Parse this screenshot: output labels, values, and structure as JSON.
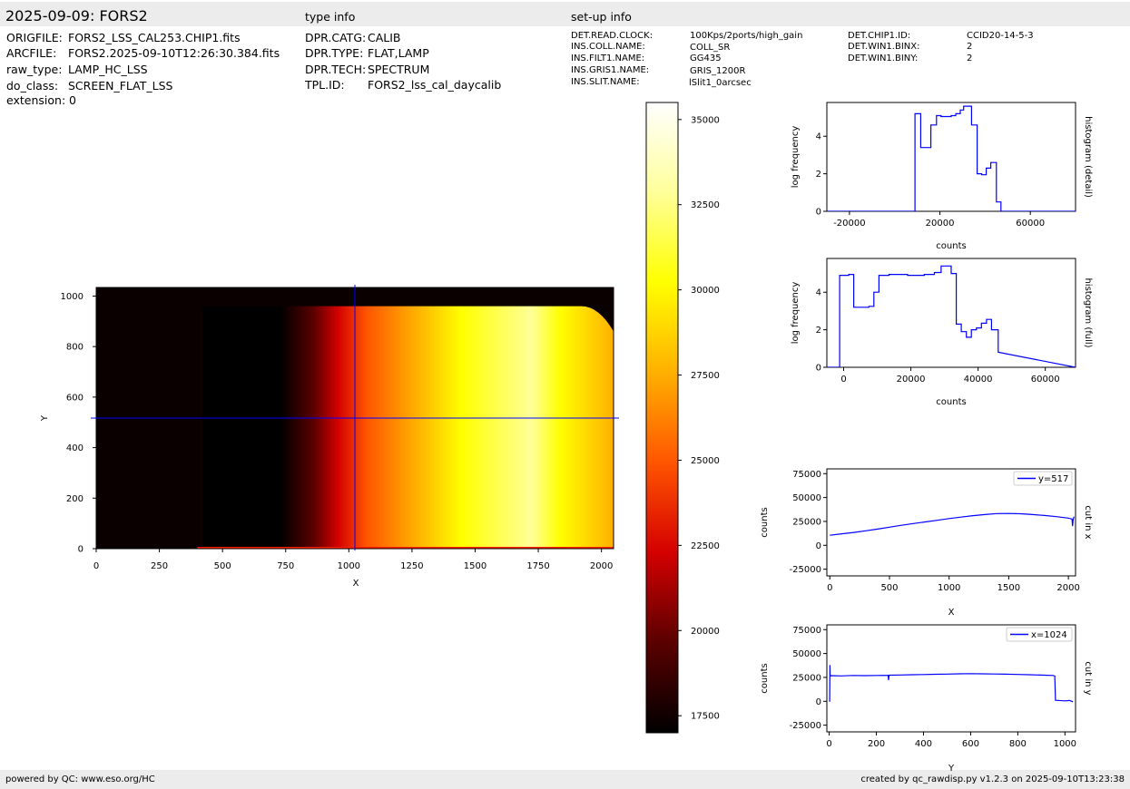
{
  "header": {
    "title": "2025-09-09: FORS2",
    "type_info_title": "type info",
    "setup_info_title": "set-up info"
  },
  "file_info": [
    {
      "key": "ORIGFILE:",
      "value": "FORS2_LSS_CAL253.CHIP1.fits"
    },
    {
      "key": "ARCFILE:",
      "value": "FORS2.2025-09-10T12:26:30.384.fits"
    },
    {
      "key": "raw_type:",
      "value": "LAMP_HC_LSS"
    },
    {
      "key": "do_class:",
      "value": "SCREEN_FLAT_LSS"
    },
    {
      "key": "extension:",
      "value": "0"
    }
  ],
  "type_info": [
    {
      "key": "DPR.CATG:",
      "value": "CALIB"
    },
    {
      "key": "DPR.TYPE:",
      "value": "FLAT,LAMP"
    },
    {
      "key": "DPR.TECH:",
      "value": "SPECTRUM"
    },
    {
      "key": "TPL.ID:",
      "value": "FORS2_lss_cal_daycalib"
    }
  ],
  "setup_info_col1": [
    {
      "key": "DET.READ.CLOCK:",
      "value": "100Kps/2ports/high_gain"
    },
    {
      "key": "INS.COLL.NAME:",
      "value": "COLL_SR"
    },
    {
      "key": "INS.FILT1.NAME:",
      "value": "GG435"
    },
    {
      "key": "INS.GRIS1.NAME:",
      "value": "GRIS_1200R"
    },
    {
      "key": "INS.SLIT.NAME:",
      "value": "lSlit1_0arcsec"
    }
  ],
  "setup_info_col2": [
    {
      "key": "DET.CHIP1.ID:",
      "value": "CCID20-14-5-3"
    },
    {
      "key": "DET.WIN1.BINX:",
      "value": "2"
    },
    {
      "key": "DET.WIN1.BINY:",
      "value": "2"
    }
  ],
  "footer": {
    "left": "powered by QC: www.eso.org/HC",
    "right": "created by qc_rawdisp.py v1.2.3 on 2025-09-10T13:23:38"
  },
  "colors": {
    "band": "#ececec",
    "line": "#0000ff",
    "colormap": [
      "#000000",
      "#5a0000",
      "#d40000",
      "#ff5500",
      "#ffb000",
      "#ffff00",
      "#ffff9a",
      "#ffffff"
    ]
  },
  "chart_data": [
    {
      "id": "image",
      "type": "heatmap",
      "xlabel": "X",
      "ylabel": "Y",
      "xlim": [
        0,
        2048
      ],
      "ylim": [
        0,
        1034
      ],
      "xticks": [
        0,
        250,
        500,
        750,
        1000,
        1250,
        1500,
        1750,
        2000
      ],
      "yticks": [
        0,
        200,
        400,
        600,
        800,
        1000
      ],
      "crosshair": {
        "x": 1024,
        "y": 517
      },
      "colorbar": {
        "range": [
          17000,
          35500
        ],
        "ticks": [
          17500,
          20000,
          22500,
          25000,
          27500,
          30000,
          32500,
          35000
        ]
      }
    },
    {
      "id": "hist_detail",
      "type": "line",
      "title_right": "histogram (detail)",
      "xlabel": "counts",
      "ylabel": "log frequency",
      "xlim": [
        -30000,
        80000
      ],
      "ylim": [
        0,
        5.8
      ],
      "xticks": [
        -20000,
        20000,
        60000
      ],
      "yticks": [
        0,
        2,
        4
      ],
      "x": [
        -30000,
        9000,
        9000,
        11500,
        11500,
        13500,
        13500,
        16000,
        16000,
        18500,
        18500,
        20500,
        20500,
        25000,
        25000,
        27000,
        27000,
        29000,
        29000,
        30500,
        30500,
        34000,
        34000,
        36500,
        36500,
        38500,
        38500,
        40500,
        40500,
        42500,
        42500,
        45000,
        45000,
        47000,
        47000,
        80000
      ],
      "y": [
        0,
        0,
        5.2,
        5.2,
        3.4,
        3.4,
        3.4,
        3.4,
        4.6,
        4.6,
        5.1,
        5.1,
        5.05,
        5.05,
        5.1,
        5.1,
        5.2,
        5.2,
        5.4,
        5.4,
        5.6,
        5.6,
        4.6,
        4.6,
        2.0,
        2.0,
        1.95,
        1.95,
        2.3,
        2.3,
        2.6,
        2.6,
        0.5,
        0.5,
        0,
        0
      ]
    },
    {
      "id": "hist_full",
      "type": "line",
      "title_right": "histogram (full)",
      "xlabel": "counts",
      "ylabel": "log frequency",
      "xlim": [
        -5000,
        69000
      ],
      "ylim": [
        0,
        5.8
      ],
      "xticks": [
        0,
        20000,
        40000,
        60000
      ],
      "yticks": [
        0,
        2,
        4
      ],
      "x": [
        -5000,
        -1200,
        -1200,
        1500,
        1500,
        3000,
        3000,
        7500,
        7500,
        9000,
        9000,
        10500,
        10500,
        13500,
        13500,
        19000,
        19000,
        24000,
        24000,
        27000,
        27000,
        29000,
        29000,
        32000,
        32000,
        33500,
        33500,
        35000,
        35000,
        36500,
        36500,
        38000,
        38000,
        39500,
        39500,
        41000,
        41000,
        42500,
        42500,
        44000,
        44000,
        46000,
        46000,
        69000
      ],
      "y": [
        0,
        0,
        4.9,
        4.9,
        4.95,
        4.95,
        3.2,
        3.2,
        3.25,
        3.25,
        4.0,
        4.0,
        4.9,
        4.9,
        4.95,
        4.95,
        4.9,
        4.9,
        4.95,
        4.95,
        5.05,
        5.05,
        5.4,
        5.4,
        5.0,
        5.0,
        2.3,
        2.3,
        1.9,
        1.9,
        1.6,
        1.6,
        2.0,
        2.0,
        2.1,
        2.1,
        2.35,
        2.35,
        2.55,
        2.55,
        2.0,
        2.0,
        0.8,
        0
      ]
    },
    {
      "id": "cut_x",
      "type": "line",
      "title_right": "cut in x",
      "legend": "y=517",
      "xlabel": "X",
      "ylabel": "counts",
      "xlim": [
        -25,
        2060
      ],
      "ylim": [
        -32000,
        80000
      ],
      "xticks": [
        0,
        500,
        1000,
        1500,
        2000
      ],
      "yticks": [
        -25000,
        0,
        25000,
        50000,
        75000
      ],
      "x": [
        0,
        100,
        200,
        300,
        400,
        500,
        600,
        700,
        800,
        900,
        1000,
        1100,
        1200,
        1300,
        1400,
        1500,
        1600,
        1700,
        1800,
        1900,
        2000,
        2030,
        2035,
        2040,
        2045,
        2048
      ],
      "y": [
        10500,
        12000,
        13500,
        15200,
        17000,
        19000,
        21000,
        22800,
        24500,
        26200,
        28000,
        29500,
        31000,
        32200,
        33200,
        33300,
        33000,
        32200,
        31200,
        30000,
        28500,
        27500,
        20000,
        27000,
        29000,
        30000
      ]
    },
    {
      "id": "cut_y",
      "type": "line",
      "title_right": "cut in y",
      "legend": "x=1024",
      "xlabel": "Y",
      "ylabel": "counts",
      "xlim": [
        -10,
        1045
      ],
      "ylim": [
        -32000,
        80000
      ],
      "xticks": [
        0,
        200,
        400,
        600,
        800,
        1000
      ],
      "yticks": [
        -25000,
        0,
        25000,
        50000,
        75000
      ],
      "x": [
        0,
        2,
        3,
        4,
        5,
        8,
        50,
        100,
        150,
        200,
        250,
        252,
        254,
        300,
        350,
        400,
        450,
        500,
        550,
        600,
        650,
        700,
        750,
        800,
        850,
        900,
        950,
        957,
        960,
        1000,
        1020,
        1034
      ],
      "y": [
        0,
        0,
        38000,
        27000,
        26500,
        26800,
        26600,
        27000,
        26800,
        27000,
        27200,
        22000,
        27300,
        27500,
        27800,
        28000,
        28300,
        28500,
        28700,
        28900,
        28700,
        28600,
        28400,
        28100,
        27800,
        27400,
        27000,
        26500,
        1000,
        500,
        800,
        -500
      ]
    }
  ]
}
